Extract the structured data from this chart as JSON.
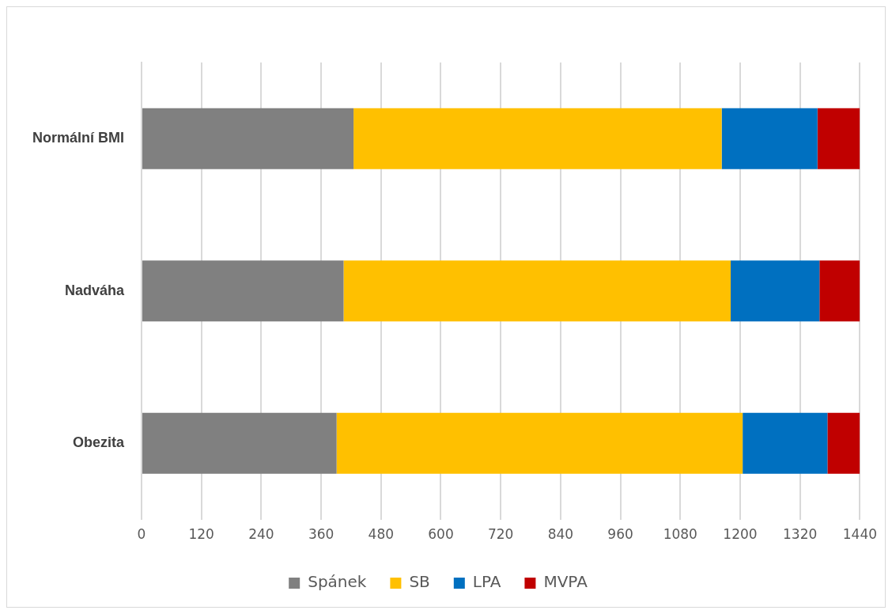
{
  "chart_data": {
    "type": "bar",
    "orientation": "horizontal",
    "stacked": true,
    "categories": [
      "Normální BMI",
      "Nadváha",
      "Obezita"
    ],
    "series": [
      {
        "name": "Spánek",
        "color": "#808080",
        "values": [
          425,
          405,
          391
        ]
      },
      {
        "name": "SB",
        "color": "#ffc000",
        "values": [
          738,
          776,
          814
        ]
      },
      {
        "name": "LPA",
        "color": "#0070c0",
        "values": [
          192,
          178,
          170
        ]
      },
      {
        "name": "MVPA",
        "color": "#c00000",
        "values": [
          85,
          81,
          65
        ]
      }
    ],
    "xlim": [
      0,
      1440
    ],
    "xticks": [
      0,
      120,
      240,
      360,
      480,
      600,
      720,
      840,
      960,
      1080,
      1200,
      1320,
      1440
    ],
    "grid": "x",
    "legend": "bottom"
  }
}
